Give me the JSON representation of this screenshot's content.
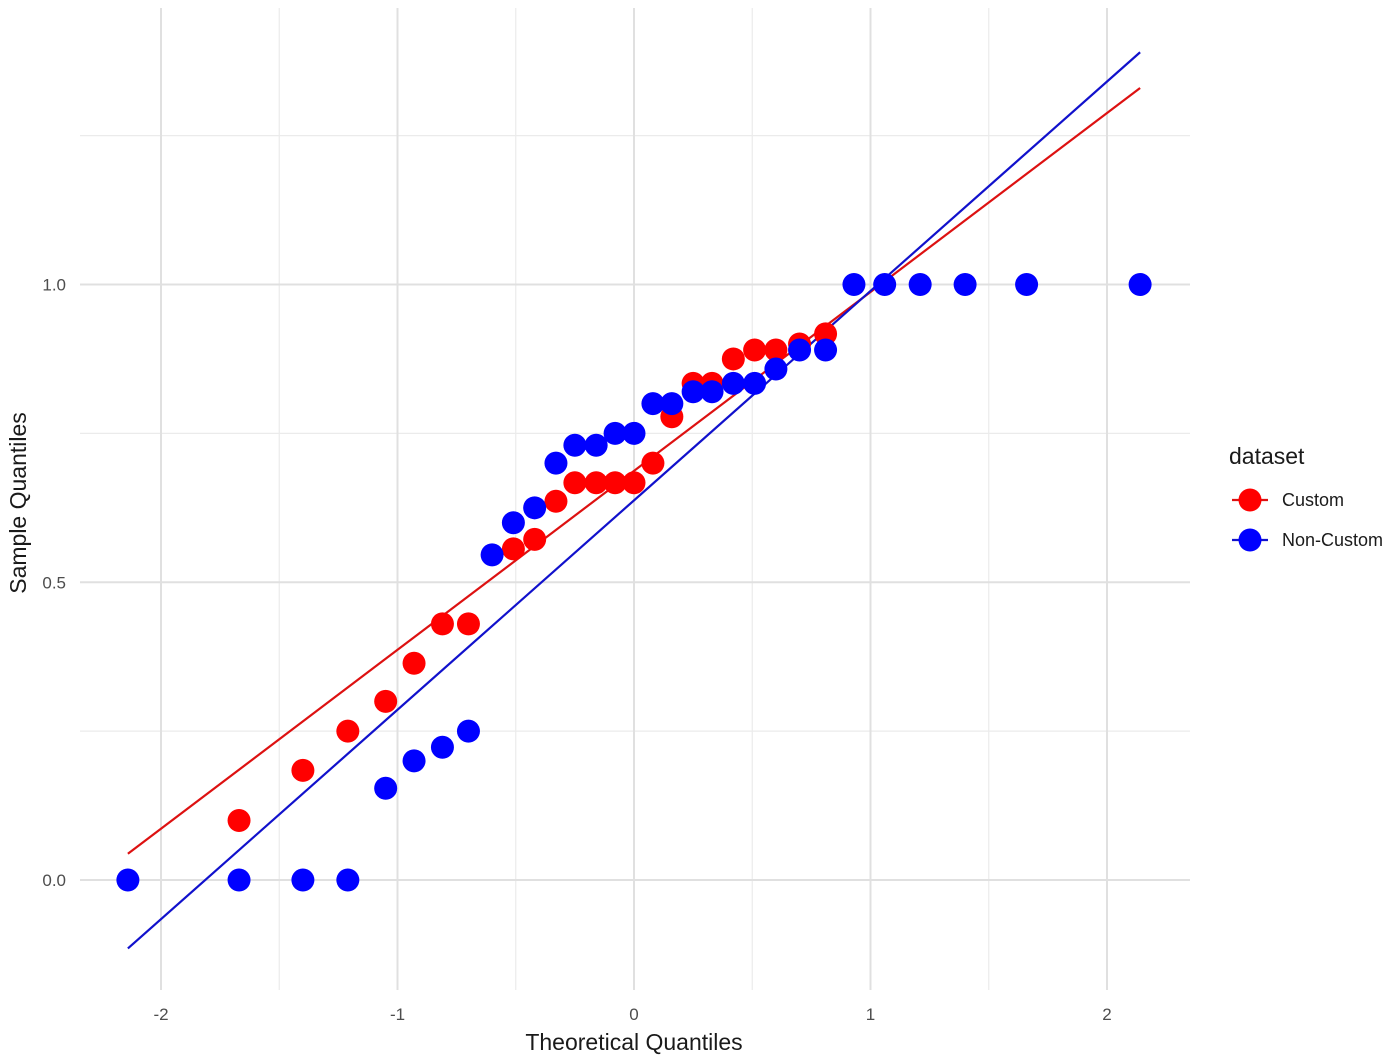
{
  "chart_data": {
    "type": "scatter",
    "title": "",
    "xlabel": "Theoretical Quantiles",
    "ylabel": "Sample Quantiles",
    "xlim": [
      -2.35,
      2.35
    ],
    "ylim": [
      -0.18,
      1.47
    ],
    "x_ticks": [
      -2,
      -1,
      0,
      1,
      2
    ],
    "x_tick_labels": [
      "-2",
      "-1",
      "0",
      "1",
      "2"
    ],
    "y_ticks": [
      0.0,
      0.5,
      1.0
    ],
    "y_tick_labels": [
      "0.0",
      "0.5",
      "1.0"
    ],
    "y_minor_ticks": [
      0.25,
      0.75,
      1.25
    ],
    "x_minor_ticks": [
      -1.5,
      -0.5,
      0.5,
      1.5
    ],
    "grid": true,
    "legend": {
      "title": "dataset",
      "placement": "right"
    },
    "series": [
      {
        "name": "Custom",
        "color": "#ff0000",
        "line_color": "#dd1111",
        "points": [
          [
            -1.67,
            0.1
          ],
          [
            -1.4,
            0.184
          ],
          [
            -1.21,
            0.25
          ],
          [
            -1.05,
            0.3
          ],
          [
            -0.93,
            0.364
          ],
          [
            -0.81,
            0.43
          ],
          [
            -0.7,
            0.43
          ],
          [
            -0.51,
            0.556
          ],
          [
            -0.42,
            0.572
          ],
          [
            -0.33,
            0.636
          ],
          [
            -0.25,
            0.667
          ],
          [
            -0.16,
            0.667
          ],
          [
            -0.08,
            0.667
          ],
          [
            0.0,
            0.667
          ],
          [
            0.08,
            0.7
          ],
          [
            0.16,
            0.778
          ],
          [
            0.25,
            0.834
          ],
          [
            0.33,
            0.834
          ],
          [
            0.42,
            0.875
          ],
          [
            0.51,
            0.89
          ],
          [
            0.6,
            0.89
          ],
          [
            0.7,
            0.9
          ],
          [
            0.81,
            0.917
          ]
        ],
        "reference_line": [
          [
            -2.14,
            0.044
          ],
          [
            2.14,
            1.33
          ]
        ]
      },
      {
        "name": "Non-Custom",
        "color": "#0000ff",
        "line_color": "#1111cc",
        "points": [
          [
            -2.14,
            0.0
          ],
          [
            -1.67,
            0.0
          ],
          [
            -1.4,
            0.0
          ],
          [
            -1.21,
            0.0
          ],
          [
            -1.05,
            0.154
          ],
          [
            -0.93,
            0.2
          ],
          [
            -0.81,
            0.223
          ],
          [
            -0.7,
            0.25
          ],
          [
            -0.6,
            0.546
          ],
          [
            -0.51,
            0.6
          ],
          [
            -0.42,
            0.625
          ],
          [
            -0.33,
            0.7
          ],
          [
            -0.25,
            0.73
          ],
          [
            -0.16,
            0.73
          ],
          [
            -0.08,
            0.75
          ],
          [
            0.0,
            0.75
          ],
          [
            0.08,
            0.8
          ],
          [
            0.16,
            0.8
          ],
          [
            0.25,
            0.82
          ],
          [
            0.33,
            0.82
          ],
          [
            0.42,
            0.834
          ],
          [
            0.51,
            0.834
          ],
          [
            0.6,
            0.858
          ],
          [
            0.7,
            0.89
          ],
          [
            0.81,
            0.89
          ],
          [
            0.93,
            1.0
          ],
          [
            1.06,
            1.0
          ],
          [
            1.21,
            1.0
          ],
          [
            1.4,
            1.0
          ],
          [
            1.66,
            1.0
          ],
          [
            2.14,
            1.0
          ]
        ],
        "reference_line": [
          [
            -2.14,
            -0.115
          ],
          [
            2.14,
            1.39
          ]
        ]
      }
    ]
  }
}
